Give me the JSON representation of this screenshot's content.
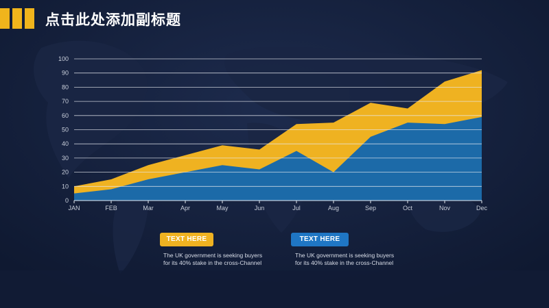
{
  "header": {
    "title": "点击此处添加副标题",
    "accent_color": "#f0b41c"
  },
  "chart_data": {
    "type": "area",
    "categories": [
      "JAN",
      "FEB",
      "Mar",
      "Apr",
      "May",
      "Jun",
      "Jul",
      "Aug",
      "Sep",
      "Oct",
      "Nov",
      "Dec"
    ],
    "ylim": [
      0,
      100
    ],
    "yticks": [
      0,
      10,
      20,
      30,
      40,
      50,
      60,
      70,
      80,
      90,
      100
    ],
    "grid": true,
    "series": [
      {
        "color": "#efb221",
        "values": [
          10,
          15,
          25,
          32,
          39,
          36,
          54,
          55,
          69,
          65,
          84,
          92
        ]
      },
      {
        "color": "#1c6aa8",
        "values": [
          5,
          8,
          15,
          20,
          25,
          22,
          35,
          20,
          45,
          55,
          54,
          59
        ]
      }
    ]
  },
  "legend": [
    {
      "label": "TEXT HERE",
      "color": "#efb221",
      "text": [
        "The UK government is seeking buyers",
        "for its 40% stake in the cross-Channel"
      ]
    },
    {
      "label": "TEXT HERE",
      "color": "#1f76c4",
      "text": [
        "The UK government is seeking buyers",
        "for its 40% stake in the cross-Channel"
      ]
    }
  ]
}
